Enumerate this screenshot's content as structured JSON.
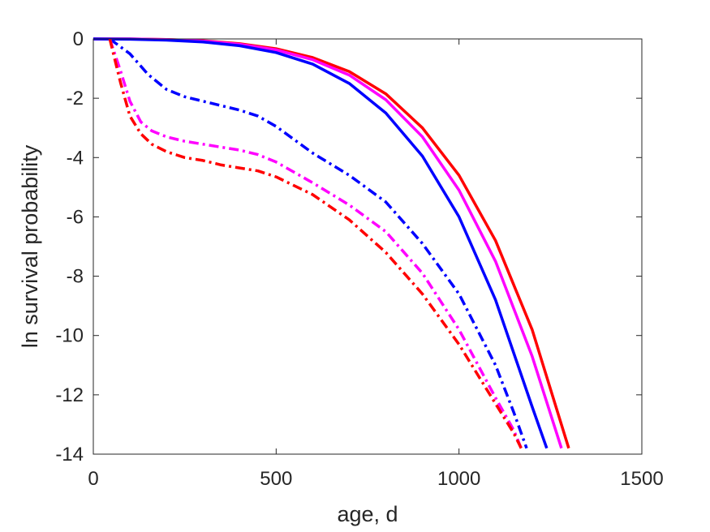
{
  "chart_data": {
    "type": "line",
    "title": "",
    "xlabel": "age, d",
    "ylabel": "ln survival probability",
    "xlim": [
      0,
      1500
    ],
    "ylim": [
      -14,
      0
    ],
    "xticks": [
      0,
      500,
      1000,
      1500
    ],
    "yticks": [
      0,
      -2,
      -4,
      -6,
      -8,
      -10,
      -12,
      -14
    ],
    "xtick_labels": [
      "0",
      "500",
      "1000",
      "1500"
    ],
    "ytick_labels": [
      "0",
      "-2",
      "-4",
      "-6",
      "-8",
      "-10",
      "-12",
      "-14"
    ],
    "grid": false,
    "legend": false,
    "series": [
      {
        "color": "#ff0000",
        "style": "solid",
        "x": [
          0,
          100,
          200,
          300,
          400,
          500,
          600,
          700,
          800,
          900,
          1000,
          1100,
          1200,
          1300
        ],
        "y": [
          0,
          0,
          -0.02,
          -0.06,
          -0.16,
          -0.33,
          -0.63,
          -1.1,
          -1.85,
          -3.0,
          -4.6,
          -6.8,
          -9.8,
          -13.8
        ]
      },
      {
        "color": "#ff00ff",
        "style": "solid",
        "x": [
          0,
          100,
          200,
          300,
          400,
          500,
          600,
          700,
          800,
          900,
          1000,
          1100,
          1200,
          1280
        ],
        "y": [
          0,
          0,
          -0.02,
          -0.07,
          -0.18,
          -0.37,
          -0.7,
          -1.22,
          -2.05,
          -3.3,
          -5.1,
          -7.5,
          -10.7,
          -13.8
        ]
      },
      {
        "color": "#0000ff",
        "style": "solid",
        "x": [
          0,
          100,
          200,
          300,
          400,
          500,
          600,
          700,
          800,
          900,
          1000,
          1100,
          1200,
          1240
        ],
        "y": [
          0,
          -0.01,
          -0.04,
          -0.1,
          -0.23,
          -0.46,
          -0.85,
          -1.5,
          -2.5,
          -3.95,
          -6.0,
          -8.8,
          -12.4,
          -13.8
        ]
      },
      {
        "color": "#0000ff",
        "style": "dashdot",
        "x": [
          45,
          100,
          150,
          200,
          250,
          300,
          350,
          400,
          450,
          500,
          600,
          700,
          800,
          900,
          1000,
          1100,
          1150,
          1185
        ],
        "y": [
          0,
          -0.5,
          -1.2,
          -1.7,
          -1.95,
          -2.1,
          -2.25,
          -2.4,
          -2.6,
          -2.95,
          -3.85,
          -4.6,
          -5.5,
          -6.9,
          -8.6,
          -11.0,
          -12.6,
          -13.8
        ]
      },
      {
        "color": "#ff00ff",
        "style": "dashdot",
        "x": [
          45,
          75,
          100,
          130,
          160,
          200,
          250,
          300,
          350,
          400,
          450,
          500,
          600,
          700,
          800,
          900,
          1000,
          1100,
          1150,
          1170
        ],
        "y": [
          0,
          -1.1,
          -2.1,
          -2.8,
          -3.1,
          -3.3,
          -3.45,
          -3.55,
          -3.65,
          -3.75,
          -3.9,
          -4.15,
          -4.85,
          -5.6,
          -6.5,
          -7.9,
          -9.8,
          -12.1,
          -13.2,
          -13.8
        ]
      },
      {
        "color": "#ff0000",
        "style": "dashdot",
        "x": [
          45,
          75,
          100,
          130,
          160,
          200,
          250,
          300,
          350,
          400,
          450,
          500,
          600,
          700,
          800,
          900,
          1000,
          1100,
          1150,
          1170
        ],
        "y": [
          0,
          -1.5,
          -2.6,
          -3.2,
          -3.55,
          -3.8,
          -4.0,
          -4.1,
          -4.25,
          -4.35,
          -4.45,
          -4.65,
          -5.25,
          -6.1,
          -7.2,
          -8.6,
          -10.3,
          -12.3,
          -13.3,
          -13.8
        ]
      }
    ]
  }
}
